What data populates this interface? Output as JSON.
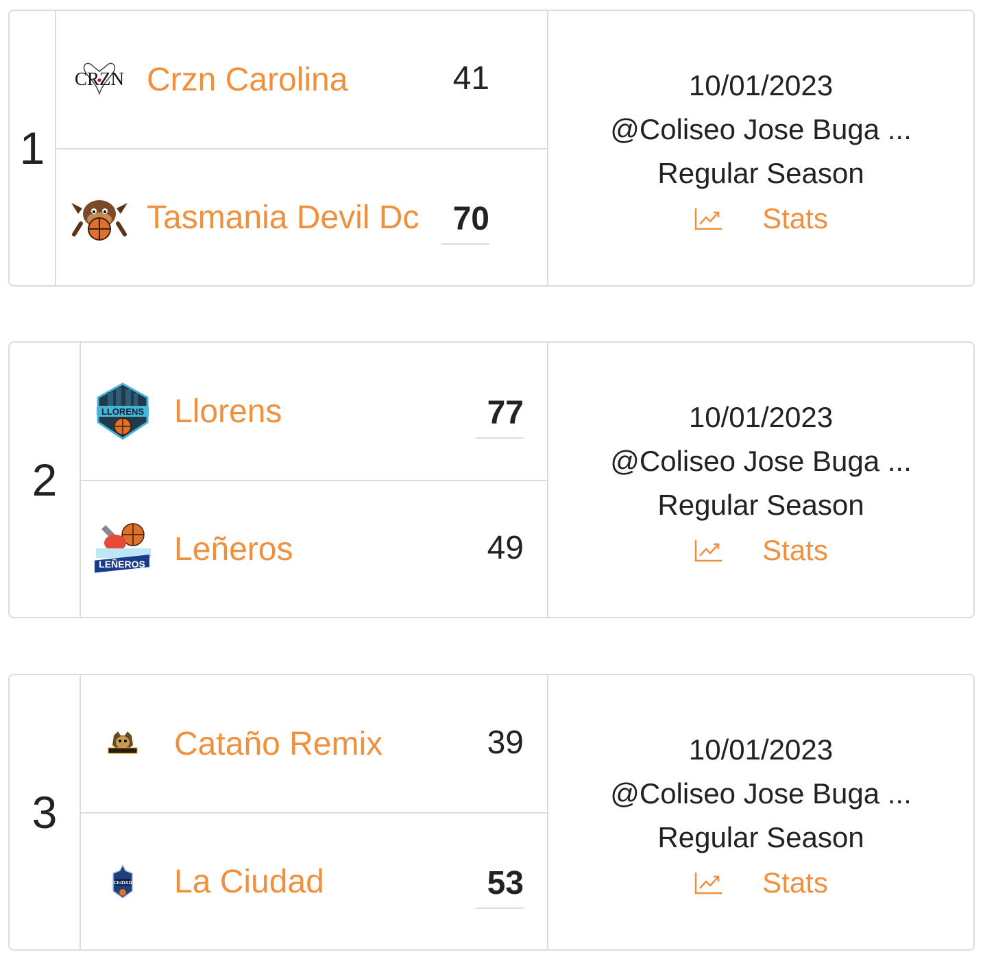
{
  "colors": {
    "accent": "#f0903c",
    "text": "#222222",
    "border": "#dcdcdc"
  },
  "games": [
    {
      "number": "1",
      "teams": [
        {
          "name": "Crzn Carolina",
          "score": "41",
          "winner": false,
          "logo": "crzn-logo",
          "logo_text": "CRZN"
        },
        {
          "name": "Tasmania Devil Dc",
          "score": "70",
          "winner": true,
          "logo": "tasmanian-devil-logo"
        }
      ],
      "date": "10/01/2023",
      "venue": "@Coliseo Jose Buga ...",
      "season": "Regular Season",
      "stats_label": "Stats",
      "stats_icon": "trending-up-chart-icon"
    },
    {
      "number": "2",
      "teams": [
        {
          "name": "Llorens",
          "score": "77",
          "winner": true,
          "logo": "llorens-logo",
          "logo_text": "LLORENS"
        },
        {
          "name": "Leñeros",
          "score": "49",
          "winner": false,
          "logo": "leneros-logo",
          "logo_text": "LEÑEROS"
        }
      ],
      "date": "10/01/2023",
      "venue": "@Coliseo Jose Buga ...",
      "season": "Regular Season",
      "stats_label": "Stats",
      "stats_icon": "trending-up-chart-icon"
    },
    {
      "number": "3",
      "teams": [
        {
          "name": "Cataño Remix",
          "score": "39",
          "winner": false,
          "logo": "catano-remix-logo"
        },
        {
          "name": "La Ciudad",
          "score": "53",
          "winner": true,
          "logo": "la-ciudad-logo",
          "logo_text": "CIUDAD"
        }
      ],
      "date": "10/01/2023",
      "venue": "@Coliseo Jose Buga ...",
      "season": "Regular Season",
      "stats_label": "Stats",
      "stats_icon": "trending-up-chart-icon"
    }
  ]
}
